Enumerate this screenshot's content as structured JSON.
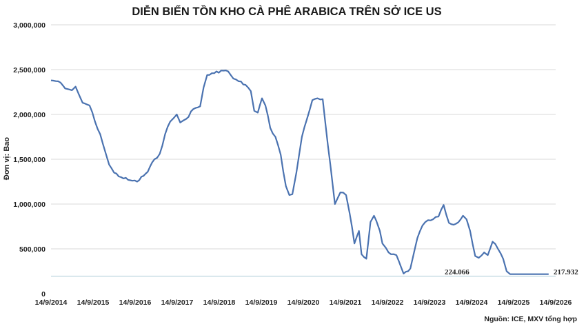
{
  "chart_data": {
    "type": "line",
    "title": "DIỄN BIẾN TỒN KHO CÀ PHÊ ARABICA TRÊN SỞ ICE US",
    "ylabel": "Đơn vị: Bao",
    "xlabel": "",
    "ylim": [
      0,
      3000000
    ],
    "y_ticks": [
      0,
      500000,
      1000000,
      1500000,
      2000000,
      2500000,
      3000000
    ],
    "y_tick_labels": [
      "0",
      "500,000",
      "1,000,000",
      "1,500,000",
      "2,000,000",
      "2,500,000",
      "3,000,000"
    ],
    "x_tick_labels": [
      "14/9/2014",
      "14/9/2015",
      "14/9/2016",
      "14/9/2017",
      "14/9/2018",
      "14/9/2019",
      "14/9/2020",
      "14/9/2021",
      "14/9/2022",
      "14/9/2023",
      "14/9/2024",
      "14/9/2025",
      "14/9/2026"
    ],
    "x_range": [
      "2014-09-14",
      "2026-09-14"
    ],
    "grid": true,
    "legend": "none",
    "line_color": "#4a72b0",
    "grid_color": "#d9d9d9",
    "baseline_color": "#a9c9d6",
    "series": [
      {
        "name": "",
        "x": [
          "2014-09-14",
          "2014-11-15",
          "2015-01-15",
          "2015-02-15",
          "2015-03-15",
          "2015-04-15",
          "2015-05-15",
          "2015-06-15",
          "2015-08-15",
          "2015-10-01",
          "2015-11-15",
          "2016-01-01",
          "2016-02-01",
          "2016-03-15",
          "2016-05-15",
          "2016-07-15",
          "2016-08-20",
          "2016-10-01",
          "2017-01-01",
          "2017-03-01",
          "2017-04-15",
          "2017-06-01",
          "2017-07-15",
          "2017-08-15",
          "2017-09-10",
          "2017-10-10",
          "2017-12-01",
          "2018-02-01",
          "2018-04-01",
          "2018-05-01",
          "2018-06-01",
          "2018-08-01",
          "2018-10-01",
          "2018-12-01",
          "2019-01-15",
          "2019-03-01",
          "2019-05-01",
          "2019-06-15",
          "2019-07-15",
          "2019-08-15",
          "2019-09-20",
          "2019-10-20",
          "2019-12-01",
          "2020-01-15",
          "2020-03-01",
          "2020-04-15",
          "2020-05-15",
          "2020-06-10",
          "2020-07-15",
          "2020-09-01",
          "2020-10-15",
          "2020-12-01",
          "2021-01-15",
          "2021-03-01",
          "2021-04-15",
          "2021-06-15",
          "2021-08-01",
          "2021-09-20",
          "2021-10-20",
          "2021-12-01",
          "2022-01-10",
          "2022-02-01",
          "2022-03-15",
          "2022-04-20",
          "2022-05-20",
          "2022-06-10",
          "2022-07-10",
          "2022-08-01",
          "2022-09-01",
          "2022-10-15",
          "2022-12-01",
          "2023-02-01",
          "2023-04-01",
          "2023-06-01",
          "2023-07-15",
          "2023-09-01",
          "2023-10-15",
          "2023-12-01",
          "2024-01-15",
          "2024-03-01",
          "2024-05-01",
          "2024-07-01",
          "2024-08-01",
          "2024-09-01",
          "2024-10-15",
          "2024-11-15",
          "2025-01-01",
          "2025-02-01",
          "2025-03-15",
          "2025-05-01",
          "2025-06-15",
          "2025-07-15",
          "2025-08-15",
          "2025-09-20",
          "2025-10-20",
          "2025-11-15",
          "2025-12-15",
          "2026-01-20",
          "2026-03-01",
          "2026-04-15",
          "2026-06-15",
          "2026-07-15"
        ],
        "values": [
          2380000,
          2370000,
          2290000,
          2280000,
          2270000,
          2310000,
          2220000,
          2130000,
          2100000,
          1920000,
          1780000,
          1570000,
          1440000,
          1350000,
          1300000,
          1270000,
          1260000,
          1250000,
          1360000,
          1500000,
          1560000,
          1780000,
          1920000,
          1960000,
          2000000,
          1910000,
          1950000,
          2060000,
          2090000,
          2300000,
          2440000,
          2460000,
          2490000,
          2480000,
          2400000,
          2370000,
          2330000,
          2260000,
          2040000,
          2020000,
          2180000,
          2100000,
          1850000,
          1750000,
          1550000,
          1200000,
          1100000,
          1110000,
          1350000,
          1750000,
          1950000,
          2160000,
          2180000,
          2170000,
          1650000,
          1000000,
          1130000,
          1100000,
          900000,
          560000,
          700000,
          440000,
          390000,
          800000,
          870000,
          810000,
          700000,
          560000,
          510000,
          440000,
          430000,
          224066,
          280000,
          620000,
          760000,
          820000,
          830000,
          860000,
          990000,
          790000,
          780000,
          870000,
          830000,
          700000,
          420000,
          400000,
          460000,
          430000,
          580000,
          500000,
          390000,
          250000,
          217932,
          217932,
          217932,
          217932,
          217932,
          217932,
          217932,
          217932,
          217932,
          217932
        ]
      }
    ],
    "annotations": [
      "224.066",
      "217.932"
    ],
    "source": "Nguồn: ICE, MXV tổng hợp"
  }
}
